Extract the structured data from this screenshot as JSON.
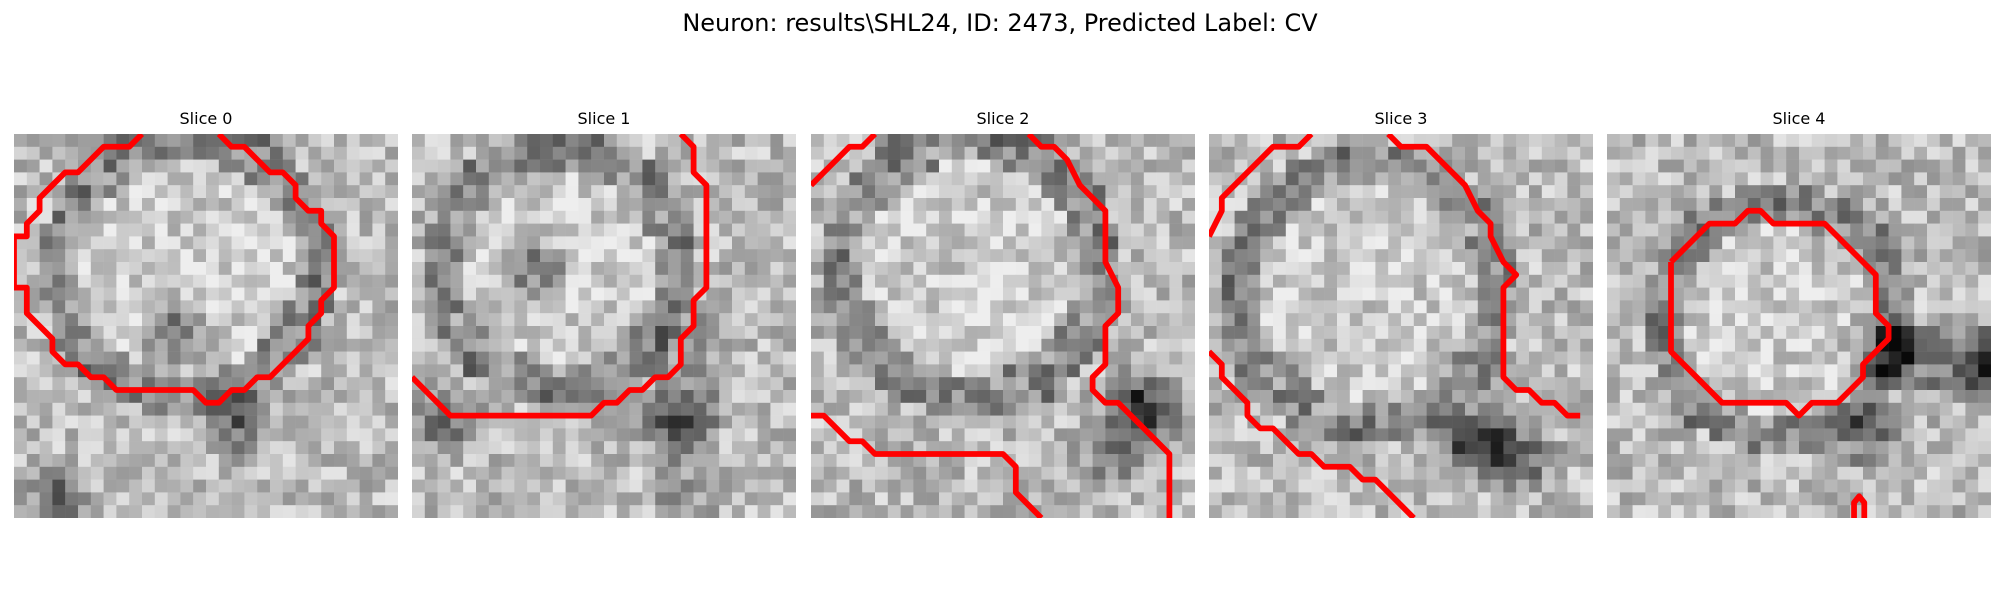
{
  "figure": {
    "title": "Neuron: results\\SHL24, ID: 2473, Predicted Label: CV"
  },
  "colors": {
    "background": "#ffffff",
    "contour": "#ff0000",
    "text": "#000000"
  },
  "slices": [
    {
      "label": "Slice 0"
    },
    {
      "label": "Slice 1"
    },
    {
      "label": "Slice 2"
    },
    {
      "label": "Slice 3"
    },
    {
      "label": "Slice 4"
    }
  ]
}
